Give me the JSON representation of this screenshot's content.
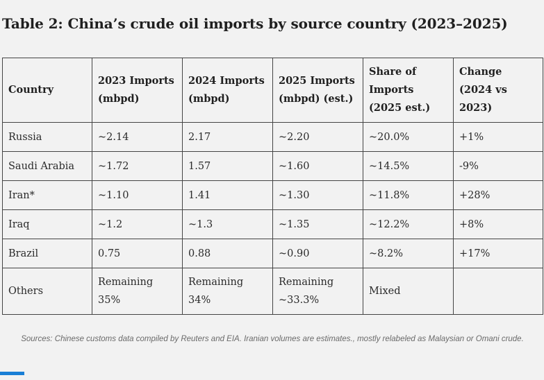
{
  "title": "Table 2: China’s crude oil imports by source country (2023–2025)",
  "table": {
    "headers": [
      "Country",
      "2023 Imports (mbpd)",
      "2024 Imports (mbpd)",
      "2025 Imports (mbpd) (est.)",
      "Share of Imports (2025 est.)",
      "Change (2024 vs 2023)"
    ],
    "rows": [
      [
        "Russia",
        "~2.14",
        "2.17",
        "~2.20",
        "~20.0%",
        "+1%"
      ],
      [
        "Saudi Arabia",
        "~1.72",
        "1.57",
        "~1.60",
        "~14.5%",
        "-9%"
      ],
      [
        "Iran*",
        "~1.10",
        "1.41",
        "~1.30",
        "~11.8%",
        "+28%"
      ],
      [
        "Iraq",
        "~1.2",
        "~1.3",
        "~1.35",
        "~12.2%",
        "+8%"
      ],
      [
        "Brazil",
        "0.75",
        "0.88",
        "~0.90",
        "~8.2%",
        "+17%"
      ],
      [
        "Others",
        "Remaining 35%",
        "Remaining 34%",
        "Remaining ~33.3%",
        "Mixed",
        ""
      ]
    ]
  },
  "caption": "Sources: Chinese customs data compiled by Reuters and EIA. Iranian volumes are estimates., mostly relabeled as Malaysian or Omani crude.",
  "colors": {
    "background": "#f2f2f2",
    "accent": "#1a7fd6",
    "border": "#444444"
  }
}
